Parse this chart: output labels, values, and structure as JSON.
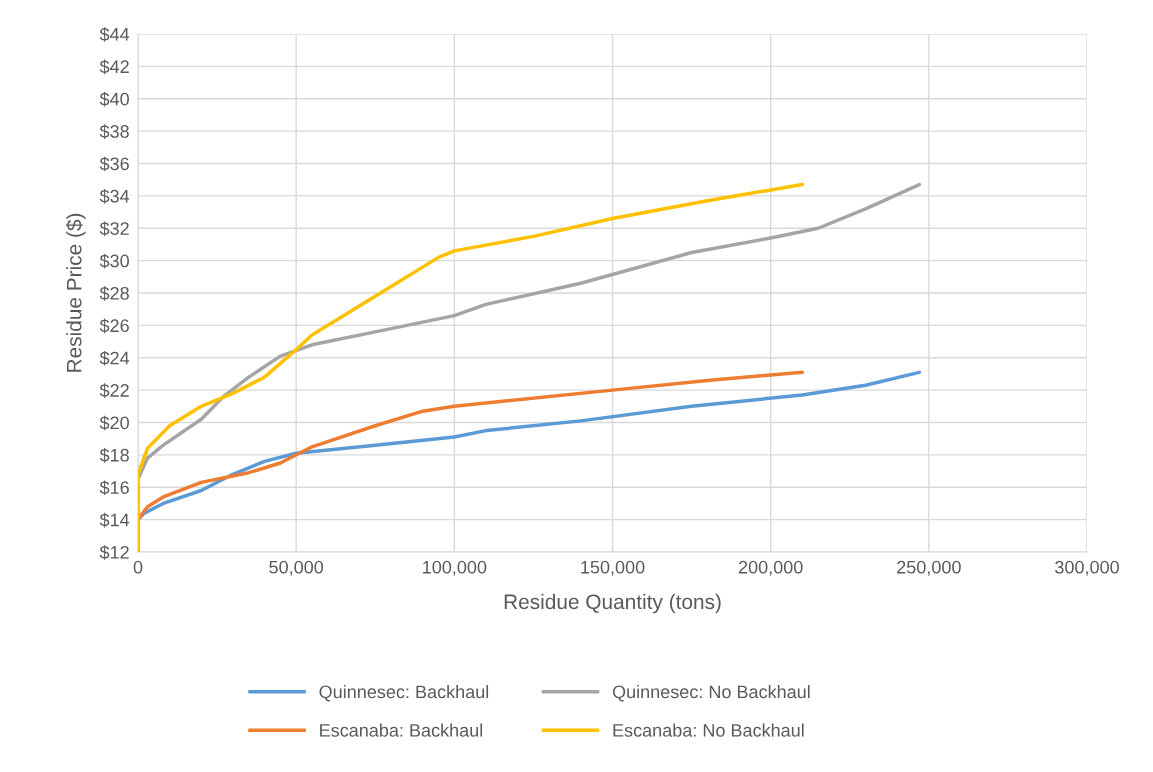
{
  "chart_data": {
    "type": "line",
    "xlabel": "Residue Quantity (tons)",
    "ylabel": "Residue Price ($)",
    "xlim": [
      0,
      300000
    ],
    "xticks": [
      {
        "value": 0,
        "label": "0"
      },
      {
        "value": 50000,
        "label": "50,000"
      },
      {
        "value": 100000,
        "label": "100,000"
      },
      {
        "value": 150000,
        "label": "150,000"
      },
      {
        "value": 200000,
        "label": "200,000"
      },
      {
        "value": 250000,
        "label": "250,000"
      },
      {
        "value": 300000,
        "label": "300,000"
      }
    ],
    "ylim": [
      12,
      44
    ],
    "yticks": [
      {
        "value": 12,
        "label": "$12"
      },
      {
        "value": 14,
        "label": "$14"
      },
      {
        "value": 16,
        "label": "$16"
      },
      {
        "value": 18,
        "label": "$18"
      },
      {
        "value": 20,
        "label": "$20"
      },
      {
        "value": 22,
        "label": "$22"
      },
      {
        "value": 24,
        "label": "$24"
      },
      {
        "value": 26,
        "label": "$26"
      },
      {
        "value": 28,
        "label": "$28"
      },
      {
        "value": 30,
        "label": "$30"
      },
      {
        "value": 32,
        "label": "$32"
      },
      {
        "value": 34,
        "label": "$34"
      },
      {
        "value": 36,
        "label": "$36"
      },
      {
        "value": 38,
        "label": "$38"
      },
      {
        "value": 40,
        "label": "$40"
      },
      {
        "value": 42,
        "label": "$42"
      },
      {
        "value": 44,
        "label": "$44"
      }
    ],
    "grid": true,
    "legend": "bottom",
    "marker": "none",
    "line_style": "solid",
    "series": [
      {
        "name": "Quinnesec: Backhaul",
        "color": "#5b9bd5",
        "x": [
          0,
          0,
          2000,
          8000,
          20000,
          30000,
          40000,
          50000,
          75000,
          100000,
          110000,
          140000,
          175000,
          210000,
          230000,
          247000
        ],
        "values": [
          12,
          14,
          14.4,
          15,
          15.8,
          16.8,
          17.6,
          18.1,
          18.6,
          19.1,
          19.5,
          20.1,
          21,
          21.7,
          22.3,
          23.1
        ]
      },
      {
        "name": "Escanaba: Backhaul",
        "color": "#ed7d31",
        "x": [
          0,
          0,
          3000,
          8000,
          20000,
          35000,
          45000,
          55000,
          75000,
          90000,
          100000,
          150000,
          180000,
          210000
        ],
        "values": [
          12,
          14,
          14.8,
          15.4,
          16.3,
          16.9,
          17.5,
          18.5,
          19.8,
          20.7,
          21.0,
          22.0,
          22.6,
          23.1
        ]
      },
      {
        "name": "Quinnesec: No Backhaul",
        "color": "#a5a5a5",
        "x": [
          0,
          0,
          3000,
          8000,
          20000,
          27000,
          35000,
          45000,
          55000,
          75000,
          100000,
          110000,
          140000,
          175000,
          200000,
          215000,
          230000,
          247000
        ],
        "values": [
          12,
          16.5,
          17.8,
          18.6,
          20.2,
          21.6,
          22.8,
          24.1,
          24.8,
          25.6,
          26.6,
          27.3,
          28.6,
          30.5,
          31.4,
          32.0,
          33.2,
          34.7
        ]
      },
      {
        "name": "Escanaba: No Backhaul",
        "color": "#ffc000",
        "x": [
          0,
          0,
          3000,
          10000,
          20000,
          30000,
          40000,
          50000,
          55000,
          75000,
          95000,
          100000,
          125000,
          150000,
          180000,
          210000
        ],
        "values": [
          12,
          16.8,
          18.4,
          19.8,
          21.0,
          21.8,
          22.8,
          24.5,
          25.4,
          27.8,
          30.2,
          30.6,
          31.5,
          32.6,
          33.7,
          34.7
        ]
      }
    ]
  }
}
